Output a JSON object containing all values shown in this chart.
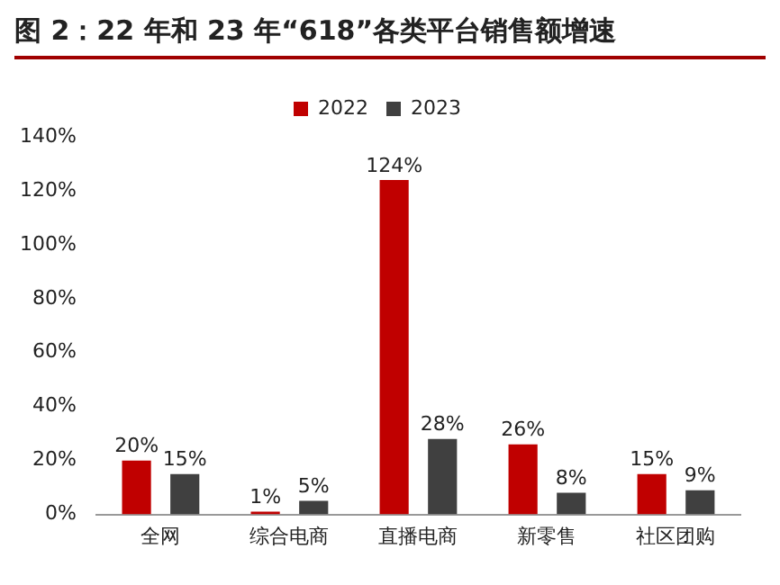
{
  "chart_data": {
    "type": "bar",
    "title": "图 2：22 年和 23 年“618”各类平台销售额增速",
    "categories": [
      "全网",
      "综合电商",
      "直播电商",
      "新零售",
      "社区团购"
    ],
    "series": [
      {
        "name": "2022",
        "color": "#c00000",
        "values": [
          20,
          1,
          124,
          26,
          15
        ],
        "value_labels": [
          "20%",
          "1%",
          "124%",
          "26%",
          "15%"
        ]
      },
      {
        "name": "2023",
        "color": "#404040",
        "values": [
          15,
          5,
          28,
          8,
          9
        ],
        "value_labels": [
          "15%",
          "5%",
          "28%",
          "8%",
          "9%"
        ]
      }
    ],
    "ylim": [
      0,
      140
    ],
    "yticks": [
      {
        "value": 0,
        "label": "0%"
      },
      {
        "value": 20,
        "label": "20%"
      },
      {
        "value": 40,
        "label": "40%"
      },
      {
        "value": 60,
        "label": "60%"
      },
      {
        "value": 80,
        "label": "80%"
      },
      {
        "value": 100,
        "label": "100%"
      },
      {
        "value": 120,
        "label": "120%"
      },
      {
        "value": 140,
        "label": "140%"
      }
    ],
    "grid": false,
    "legend": "top"
  }
}
